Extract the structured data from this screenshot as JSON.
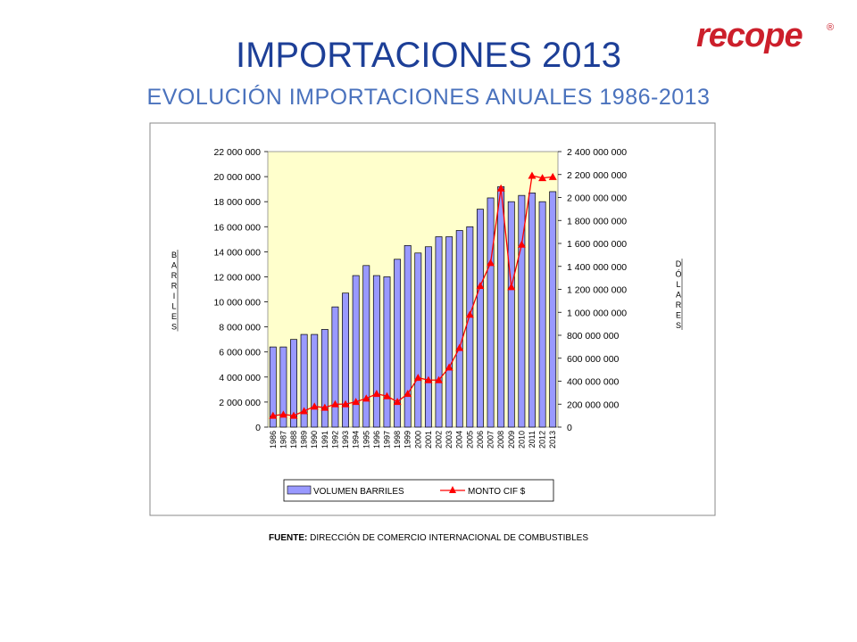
{
  "header": {
    "title": "IMPORTACIONES 2013",
    "subtitle": "EVOLUCIÓN IMPORTACIONES ANUALES 1986-2013"
  },
  "logo": {
    "text": "recope",
    "registered": "®",
    "color": "#cc1f2b"
  },
  "source": {
    "label": "FUENTE:",
    "text": "DIRECCIÓN DE COMERCIO INTERNACIONAL DE COMBUSTIBLES"
  },
  "chart_data": {
    "type": "bar",
    "categories": [
      "1986",
      "1987",
      "1988",
      "1989",
      "1990",
      "1991",
      "1992",
      "1993",
      "1994",
      "1995",
      "1996",
      "1997",
      "1998",
      "1999",
      "2000",
      "2001",
      "2002",
      "2003",
      "2004",
      "2005",
      "2006",
      "2007",
      "2008",
      "2009",
      "2010",
      "2011",
      "2012",
      "2013"
    ],
    "series": [
      {
        "name": "VOLUMEN BARRILES",
        "type": "bar",
        "axis": "left",
        "color": "#9999ff",
        "values": [
          6400000,
          6400000,
          7000000,
          7400000,
          7400000,
          7800000,
          9600000,
          10700000,
          12100000,
          12900000,
          12100000,
          12000000,
          13400000,
          14500000,
          13900000,
          14400000,
          15200000,
          15200000,
          15700000,
          16000000,
          17400000,
          18300000,
          19200000,
          18000000,
          18500000,
          18700000,
          18000000,
          18800000
        ]
      },
      {
        "name": "MONTO CIF $",
        "type": "line",
        "axis": "right",
        "color": "#ff0000",
        "values": [
          100000000,
          110000000,
          100000000,
          140000000,
          180000000,
          170000000,
          200000000,
          200000000,
          220000000,
          250000000,
          290000000,
          270000000,
          220000000,
          290000000,
          430000000,
          410000000,
          410000000,
          520000000,
          690000000,
          980000000,
          1230000000,
          1430000000,
          2080000000,
          1220000000,
          1590000000,
          2190000000,
          2170000000,
          2180000000
        ]
      }
    ],
    "yleft": {
      "label": "BARRILES",
      "lim": [
        0,
        22000000
      ],
      "ticks": [
        "0",
        "2 000 000",
        "4 000 000",
        "6 000 000",
        "8 000 000",
        "10 000 000",
        "12 000 000",
        "14 000 000",
        "16 000 000",
        "18 000 000",
        "20 000 000",
        "22 000 000"
      ]
    },
    "yright": {
      "label": "DÓLARES",
      "lim": [
        0,
        2400000000
      ],
      "ticks": [
        "0",
        "200 000 000",
        "400 000 000",
        "600 000 000",
        "800 000 000",
        "1 000 000 000",
        "1 200 000 000",
        "1 400 000 000",
        "1 600 000 000",
        "1 800 000 000",
        "2 000 000 000",
        "2 200 000 000",
        "2 400 000 000"
      ]
    },
    "plot_background": "#ffffcc",
    "grid": false,
    "legend": "bottom"
  }
}
